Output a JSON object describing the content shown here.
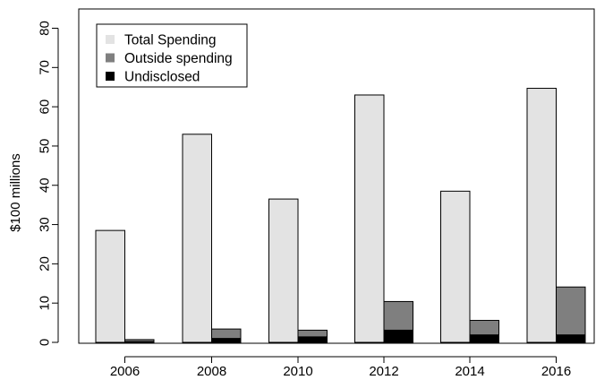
{
  "chart_data": {
    "type": "bar",
    "categories": [
      "2006",
      "2008",
      "2010",
      "2012",
      "2014",
      "2016"
    ],
    "series": [
      {
        "name": "Total Spending",
        "values": [
          28.5,
          53.0,
          36.5,
          63.0,
          38.5,
          64.7
        ],
        "color": "#e3e3e3"
      },
      {
        "name": "Outside spending",
        "values": [
          0.7,
          3.4,
          3.1,
          10.4,
          5.6,
          14.1
        ],
        "color": "#7f7f7f"
      },
      {
        "name": "Undisclosed",
        "values": [
          0.2,
          1.0,
          1.4,
          3.1,
          1.9,
          1.9
        ],
        "color": "#000000"
      }
    ],
    "stacking": "Outside spending and Undisclosed share one bar; Undisclosed is drawn from zero over Outside spending",
    "title": "",
    "xlabel": "",
    "ylabel": "$100 millions",
    "ylim": [
      0,
      80
    ],
    "yticks": [
      0,
      10,
      20,
      30,
      40,
      50,
      60,
      70,
      80
    ],
    "grid": false,
    "legend_position": "top-left"
  }
}
